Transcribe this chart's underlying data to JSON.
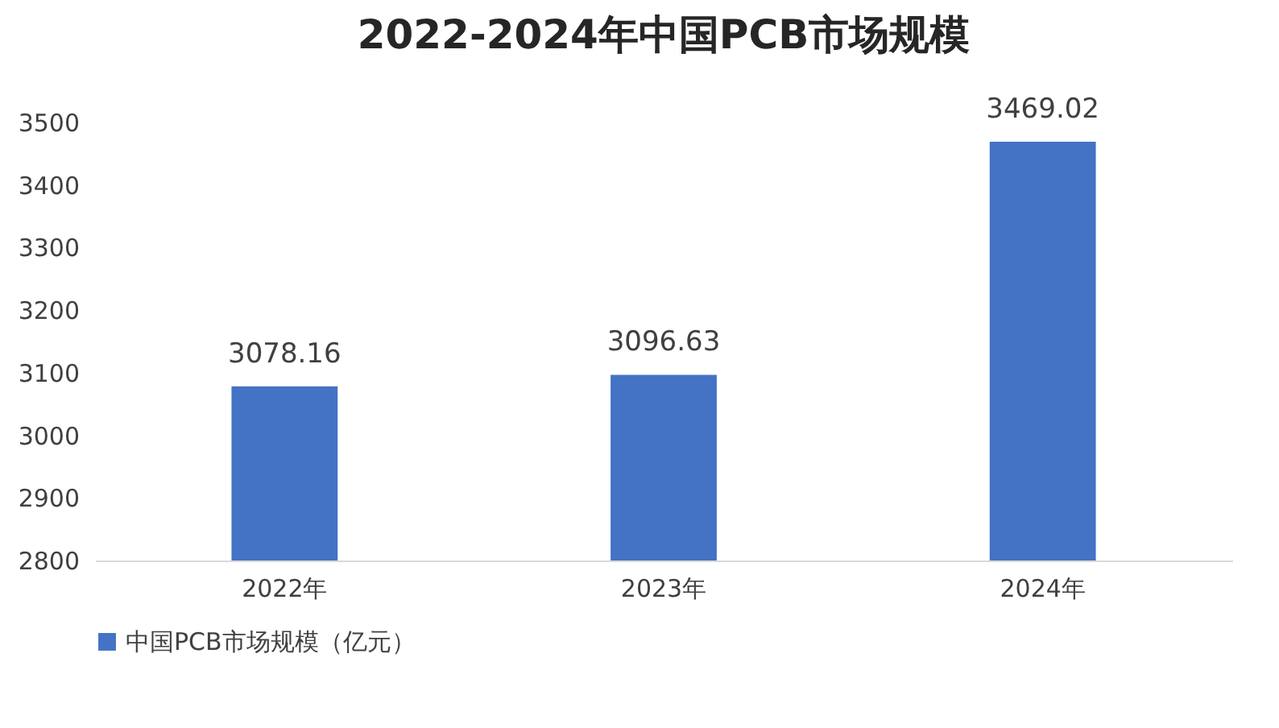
{
  "chart_data": {
    "type": "bar",
    "title": "2022-2024年中国PCB市场规模",
    "categories": [
      "2022年",
      "2023年",
      "2024年"
    ],
    "series": [
      {
        "name": "中国PCB市场规模（亿元）",
        "color": "#4472c4",
        "values": [
          3078.16,
          3096.63,
          3469.02
        ]
      }
    ],
    "ylim": [
      2800,
      3500
    ],
    "yticks": [
      2800,
      2900,
      3000,
      3100,
      3200,
      3300,
      3400,
      3500
    ],
    "grid": false,
    "legend": "bottom",
    "data_labels": true
  }
}
